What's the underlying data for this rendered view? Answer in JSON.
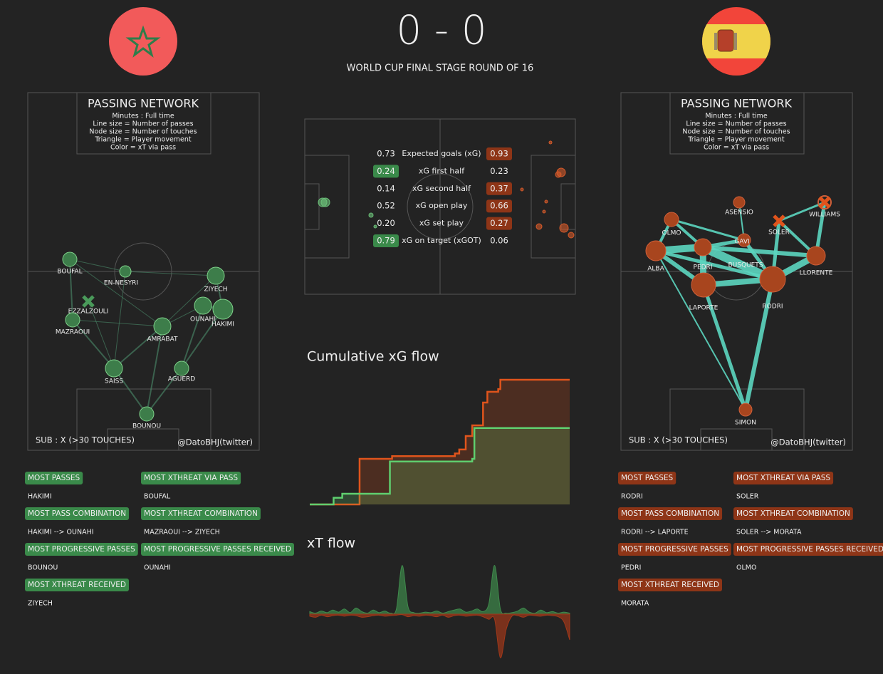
{
  "header": {
    "score": "0 - 0",
    "competition": "WORLD CUP FINAL STAGE ROUND OF 16"
  },
  "home": {
    "network": {
      "title": "PASSING NETWORK",
      "notes": [
        "Minutes : Full time",
        "Line size = Number of passes",
        "Node size = Number of touches",
        "Triangle = Player movement",
        "Color = xT via pass"
      ],
      "sub_note": "SUB : X (>30 TOUCHES)",
      "credit": "@DatoBHJ(twitter)",
      "players": [
        "BOUFAL",
        "EN-NESYRI",
        "EZZALZOULI",
        "MAZRAOUI",
        "ZIYECH",
        "OUNAHI",
        "HAKIMI",
        "AMRABAT",
        "SAISS",
        "AGUERD",
        "BOUNOU"
      ]
    },
    "awards": [
      {
        "label": "MOST PASSES",
        "value": "HAKIMI"
      },
      {
        "label": "MOST XTHREAT VIA PASS",
        "value": "BOUFAL"
      },
      {
        "label": "MOST PASS COMBINATION",
        "value": "HAKIMI --> OUNAHI"
      },
      {
        "label": "MOST XTHREAT COMBINATION",
        "value": "MAZRAOUI --> ZIYECH"
      },
      {
        "label": "MOST PROGRESSIVE PASSES",
        "value": "BOUNOU"
      },
      {
        "label": "MOST PROGRESSIVE PASSES RECEIVED",
        "value": "OUNAHI"
      },
      {
        "label": "MOST XTHREAT RECEIVED",
        "value": "ZIYECH"
      }
    ]
  },
  "away": {
    "network": {
      "title": "PASSING NETWORK",
      "notes": [
        "Minutes : Full time",
        "Line size = Number of passes",
        "Node size = Number of touches",
        "Triangle = Player movement",
        "Color = xT via pass"
      ],
      "sub_note": "SUB : X (>30 TOUCHES)",
      "credit": "@DatoBHJ(twitter)",
      "players": [
        "ASENSIO",
        "WILLIAMS",
        "OLMO",
        "SOLER",
        "GAVI",
        "ALBA",
        "PEDRI",
        "BUSQUETS",
        "LLORENTE",
        "LAPORTE",
        "RODRI",
        "SIMON"
      ]
    },
    "awards": [
      {
        "label": "MOST PASSES",
        "value": "RODRI"
      },
      {
        "label": "MOST XTHREAT VIA PASS",
        "value": "SOLER"
      },
      {
        "label": "MOST PASS COMBINATION",
        "value": "RODRI --> LAPORTE"
      },
      {
        "label": "MOST XTHREAT COMBINATION",
        "value": "SOLER --> MORATA"
      },
      {
        "label": "MOST PROGRESSIVE PASSES",
        "value": "PEDRI"
      },
      {
        "label": "MOST PROGRESSIVE PASSES RECEIVED",
        "value": "OLMO"
      },
      {
        "label": "MOST XTHREAT RECEIVED",
        "value": "MORATA"
      }
    ]
  },
  "stats": {
    "rows": [
      {
        "label": "Expected goals (xG)",
        "home": "0.73",
        "away": "0.93",
        "leader": "away"
      },
      {
        "label": "xG first half",
        "home": "0.24",
        "away": "0.23",
        "leader": "home"
      },
      {
        "label": "xG second half",
        "home": "0.14",
        "away": "0.37",
        "leader": "away"
      },
      {
        "label": "xG open play",
        "home": "0.52",
        "away": "0.66",
        "leader": "away"
      },
      {
        "label": "xG set play",
        "home": "0.20",
        "away": "0.27",
        "leader": "away"
      },
      {
        "label": "xG on target (xGOT)",
        "home": "0.79",
        "away": "0.06",
        "leader": "home"
      }
    ]
  },
  "xg_flow": {
    "type": "line",
    "title": "Cumulative xG flow",
    "xlim": [
      0,
      120
    ],
    "ylim": [
      0,
      0.93
    ],
    "series": [
      {
        "color": "#e0541c",
        "x": [
          0,
          23,
          38,
          67,
          69,
          72,
          75,
          80,
          82,
          87,
          88,
          120
        ],
        "values": [
          0,
          0.34,
          0.36,
          0.38,
          0.41,
          0.51,
          0.59,
          0.76,
          0.84,
          0.86,
          0.93,
          0.93
        ]
      },
      {
        "color": "#5fcf6f",
        "x": [
          0,
          11,
          15,
          37,
          75,
          76,
          120
        ],
        "values": [
          0,
          0.05,
          0.08,
          0.32,
          0.34,
          0.57,
          0.57
        ]
      }
    ]
  },
  "xt_flow": {
    "type": "area",
    "title": "xT flow",
    "series": [
      {
        "color": "#3f8a4c",
        "values": [
          0.05,
          0.02,
          0.06,
          0.03,
          0.08,
          0.04,
          0.1,
          0.03,
          0.12,
          0.05,
          0.02,
          0.08,
          0.03,
          0.06,
          0.02,
          0.1,
          0.95,
          0.15,
          0.03,
          0.02,
          0.04,
          0.03,
          0.06,
          0.02,
          0.05,
          0.08,
          0.1,
          0.04,
          0.06,
          0.1,
          0.05,
          0.2,
          0.95,
          0.1,
          0.02,
          0.03,
          0.06,
          0.12,
          0.04,
          0.02,
          0.08,
          0.03,
          0.05,
          0.02,
          0.04,
          0.02
        ]
      },
      {
        "color": "#a0381a",
        "values": [
          -0.04,
          -0.06,
          -0.02,
          -0.05,
          -0.03,
          -0.02,
          -0.04,
          -0.02,
          -0.03,
          -0.06,
          -0.05,
          -0.03,
          -0.02,
          -0.04,
          -0.03,
          -0.02,
          -0.01,
          -0.05,
          -0.03,
          -0.04,
          -0.02,
          -0.03,
          -0.05,
          -0.02,
          -0.06,
          -0.03,
          -0.02,
          -0.04,
          -0.03,
          -0.02,
          -0.05,
          -0.1,
          -0.1,
          -0.85,
          -0.3,
          -0.04,
          -0.03,
          -0.06,
          -0.02,
          -0.03,
          -0.04,
          -0.02,
          -0.03,
          -0.05,
          -0.15,
          -0.5
        ]
      }
    ]
  }
}
